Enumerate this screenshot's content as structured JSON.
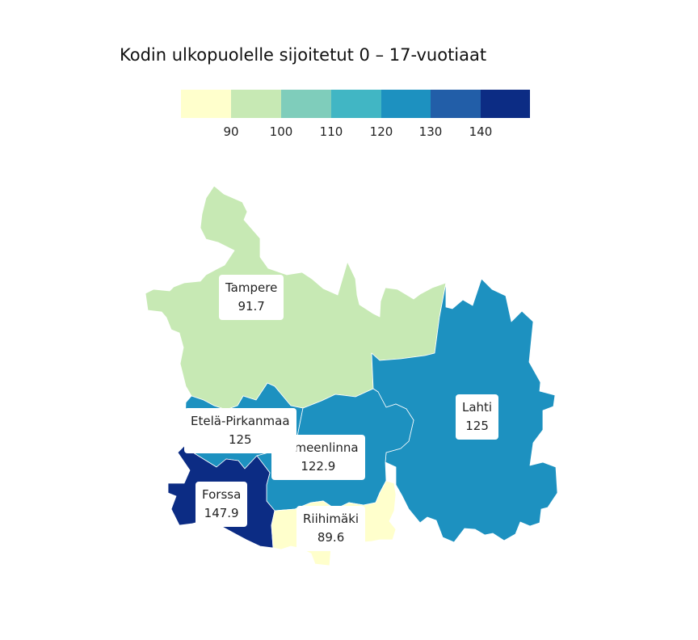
{
  "title": "Kodin ulkopuolelle sijoitetut 0 – 17-vuotiaat",
  "legend": {
    "colors": [
      "#ffffcc",
      "#c7e9b4",
      "#7fcdbb",
      "#41b6c4",
      "#1d91c0",
      "#225ea8",
      "#0c2c84"
    ],
    "ticks": [
      "90",
      "100",
      "110",
      "120",
      "130",
      "140"
    ],
    "bins": [
      [
        null,
        90
      ],
      [
        90,
        100
      ],
      [
        100,
        110
      ],
      [
        110,
        120
      ],
      [
        120,
        130
      ],
      [
        130,
        140
      ],
      [
        140,
        null
      ]
    ]
  },
  "regions": [
    {
      "name": "Tampere",
      "value": "91.7",
      "color": "#c7e9b4"
    },
    {
      "name": "Lahti",
      "value": "125",
      "color": "#1d91c0"
    },
    {
      "name": "Etelä-Pirkanmaa",
      "value": "125",
      "color": "#1d91c0"
    },
    {
      "name": "Hämeenlinna",
      "value": "122.9",
      "color": "#1d91c0"
    },
    {
      "name": "Forssa",
      "value": "147.9",
      "color": "#0c2c84"
    },
    {
      "name": "Riihimäki",
      "value": "89.6",
      "color": "#ffffcc"
    }
  ]
}
